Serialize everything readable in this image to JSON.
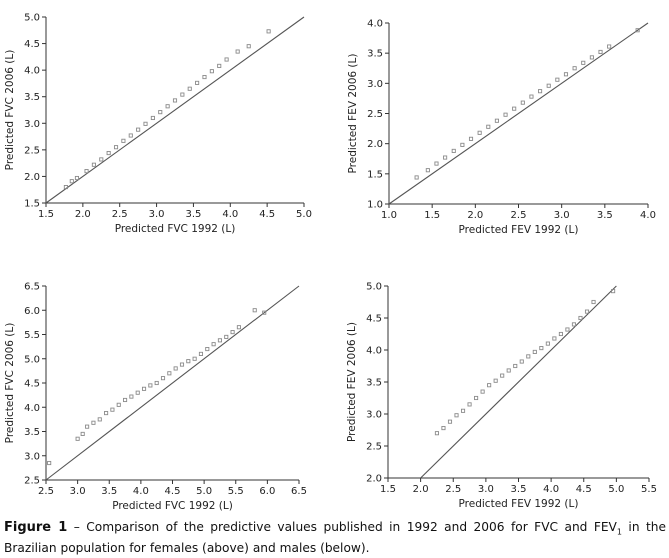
{
  "chart_data": [
    {
      "type": "scatter",
      "xlabel": "Predicted FVC 1992 (L)",
      "ylabel": "Predicted FVC 2006 (L)",
      "xlim": [
        1.5,
        5.0
      ],
      "ylim": [
        1.5,
        5.0
      ],
      "xticks": [
        "1.5",
        "2.0",
        "2.5",
        "3.0",
        "3.5",
        "4.0",
        "4.5",
        "5.0"
      ],
      "yticks": [
        "1.5",
        "2.0",
        "2.5",
        "3.0",
        "3.5",
        "4.0",
        "4.5",
        "5.0"
      ],
      "identity_line": [
        [
          1.5,
          1.5
        ],
        [
          5.0,
          5.0
        ]
      ],
      "x": [
        1.77,
        1.85,
        1.92,
        2.05,
        2.15,
        2.25,
        2.35,
        2.45,
        2.55,
        2.65,
        2.75,
        2.85,
        2.95,
        3.05,
        3.15,
        3.25,
        3.35,
        3.45,
        3.55,
        3.65,
        3.75,
        3.85,
        3.95,
        4.1,
        4.25,
        4.52
      ],
      "y": [
        1.8,
        1.91,
        1.97,
        2.1,
        2.22,
        2.32,
        2.44,
        2.55,
        2.67,
        2.77,
        2.88,
        2.99,
        3.1,
        3.21,
        3.32,
        3.43,
        3.54,
        3.65,
        3.76,
        3.87,
        3.98,
        4.08,
        4.2,
        4.35,
        4.45,
        4.73
      ]
    },
    {
      "type": "scatter",
      "xlabel": "Predicted FEV 1992 (L)",
      "ylabel": "Predicted FEV 2006 (L)",
      "xlim": [
        1.0,
        4.0
      ],
      "ylim": [
        1.0,
        4.0
      ],
      "xticks": [
        "1.0",
        "1.5",
        "2.0",
        "2.5",
        "3.0",
        "3.5",
        "4.0"
      ],
      "yticks": [
        "1.0",
        "1.5",
        "2.0",
        "2.5",
        "3.0",
        "3.5",
        "4.0"
      ],
      "identity_line": [
        [
          1.0,
          1.0
        ],
        [
          4.0,
          4.0
        ]
      ],
      "x": [
        1.32,
        1.45,
        1.55,
        1.65,
        1.75,
        1.85,
        1.95,
        2.05,
        2.15,
        2.25,
        2.35,
        2.45,
        2.55,
        2.65,
        2.75,
        2.85,
        2.95,
        3.05,
        3.15,
        3.25,
        3.35,
        3.45,
        3.55,
        3.88
      ],
      "y": [
        1.44,
        1.56,
        1.67,
        1.77,
        1.88,
        1.98,
        2.08,
        2.18,
        2.28,
        2.38,
        2.48,
        2.58,
        2.68,
        2.78,
        2.87,
        2.96,
        3.06,
        3.15,
        3.25,
        3.34,
        3.43,
        3.52,
        3.61,
        3.88
      ]
    },
    {
      "type": "scatter",
      "xlabel": "Predicted FVC 1992 (L)",
      "ylabel": "Predicted FVC 2006 (L)",
      "xlim": [
        2.5,
        6.5
      ],
      "ylim": [
        2.5,
        6.5
      ],
      "xticks": [
        "2.5",
        "3.0",
        "3.5",
        "4.0",
        "4.5",
        "5.0",
        "5.5",
        "6.0",
        "6.5"
      ],
      "yticks": [
        "2.5",
        "3.0",
        "3.5",
        "4.0",
        "4.5",
        "5.0",
        "5.5",
        "6.0",
        "6.5"
      ],
      "identity_line": [
        [
          2.5,
          2.5
        ],
        [
          6.5,
          6.5
        ]
      ],
      "x": [
        2.55,
        3.0,
        3.08,
        3.15,
        3.25,
        3.35,
        3.45,
        3.55,
        3.65,
        3.75,
        3.85,
        3.95,
        4.05,
        4.15,
        4.25,
        4.35,
        4.45,
        4.55,
        4.65,
        4.75,
        4.85,
        4.95,
        5.05,
        5.15,
        5.25,
        5.35,
        5.45,
        5.55,
        5.8,
        5.95
      ],
      "y": [
        2.85,
        3.35,
        3.45,
        3.6,
        3.68,
        3.75,
        3.88,
        3.95,
        4.05,
        4.15,
        4.22,
        4.3,
        4.38,
        4.45,
        4.5,
        4.6,
        4.7,
        4.8,
        4.88,
        4.95,
        5.0,
        5.1,
        5.2,
        5.3,
        5.38,
        5.45,
        5.55,
        5.65,
        6.0,
        5.95
      ]
    },
    {
      "type": "scatter",
      "xlabel": "Predicted FEV 1992 (L)",
      "ylabel": "Predicted FEV 2006 (L)",
      "xlim": [
        1.5,
        5.5
      ],
      "ylim": [
        2.0,
        5.0
      ],
      "xticks": [
        "1.5",
        "2.0",
        "2.5",
        "3.0",
        "3.5",
        "4.0",
        "4.5",
        "5.0",
        "5.5"
      ],
      "yticks": [
        "2.0",
        "2.5",
        "3.0",
        "3.5",
        "4.0",
        "4.5",
        "5.0"
      ],
      "identity_line": [
        [
          2.0,
          2.0
        ],
        [
          5.0,
          5.0
        ]
      ],
      "x": [
        2.25,
        2.35,
        2.45,
        2.55,
        2.65,
        2.75,
        2.85,
        2.95,
        3.05,
        3.15,
        3.25,
        3.35,
        3.45,
        3.55,
        3.65,
        3.75,
        3.85,
        3.95,
        4.05,
        4.15,
        4.25,
        4.35,
        4.45,
        4.55,
        4.65,
        4.95
      ],
      "y": [
        2.7,
        2.78,
        2.88,
        2.98,
        3.05,
        3.15,
        3.25,
        3.35,
        3.45,
        3.52,
        3.6,
        3.68,
        3.75,
        3.82,
        3.9,
        3.97,
        4.03,
        4.1,
        4.18,
        4.25,
        4.32,
        4.4,
        4.5,
        4.6,
        4.75,
        4.92
      ]
    }
  ],
  "caption": {
    "label": "Figure 1",
    "dash": " – ",
    "text_1": "Comparison of the predictive values published in 1992 and 2006 for FVC and FEV",
    "subscript": "1",
    "text_2": " in the Brazilian population for females (above) and males (below)."
  },
  "colors": {
    "marker": "#8a8a8a",
    "line": "#555555",
    "axis": "#333333"
  }
}
